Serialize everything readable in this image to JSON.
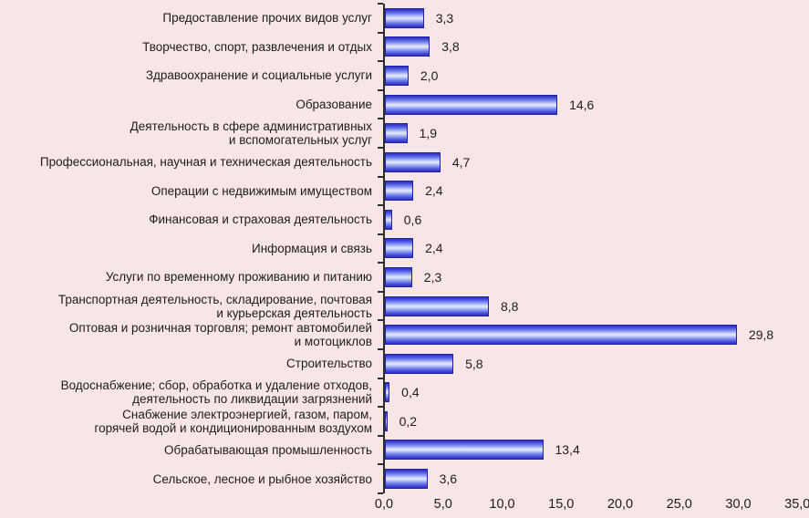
{
  "chart_data": {
    "type": "bar",
    "orientation": "horizontal",
    "title": "",
    "xlabel": "",
    "ylabel": "",
    "xlim": [
      0,
      35
    ],
    "x_tick_step": 5,
    "grid": false,
    "legend": false,
    "x_ticks": [
      "0,0",
      "5,0",
      "10,0",
      "15,0",
      "20,0",
      "25,0",
      "30,0",
      "35,0"
    ],
    "bars": [
      {
        "label_lines": [
          "Предоставление прочих видов услуг"
        ],
        "value": 3.3,
        "value_label": "3,3"
      },
      {
        "label_lines": [
          "Творчество, спорт, развлечения и отдых"
        ],
        "value": 3.8,
        "value_label": "3,8"
      },
      {
        "label_lines": [
          "Здравоохранение и социальные услуги"
        ],
        "value": 2.0,
        "value_label": "2,0"
      },
      {
        "label_lines": [
          "Образование"
        ],
        "value": 14.6,
        "value_label": "14,6"
      },
      {
        "label_lines": [
          "Деятельность в сфере административных",
          "и вспомогательных услуг"
        ],
        "value": 1.9,
        "value_label": "1,9"
      },
      {
        "label_lines": [
          "Профессиональная, научная и техническая деятельность"
        ],
        "value": 4.7,
        "value_label": "4,7"
      },
      {
        "label_lines": [
          "Операции с недвижимым имуществом"
        ],
        "value": 2.4,
        "value_label": "2,4"
      },
      {
        "label_lines": [
          "Финансовая и страховая деятельность"
        ],
        "value": 0.6,
        "value_label": "0,6"
      },
      {
        "label_lines": [
          "Информация и связь"
        ],
        "value": 2.4,
        "value_label": "2,4"
      },
      {
        "label_lines": [
          "Услуги по временному проживанию и питанию"
        ],
        "value": 2.3,
        "value_label": "2,3"
      },
      {
        "label_lines": [
          "Транспортная деятельность, складирование, почтовая",
          "и курьерская деятельность"
        ],
        "value": 8.8,
        "value_label": "8,8"
      },
      {
        "label_lines": [
          "Оптовая и розничная торговля; ремонт автомобилей",
          "и мотоциклов"
        ],
        "value": 29.8,
        "value_label": "29,8"
      },
      {
        "label_lines": [
          "Строительство"
        ],
        "value": 5.8,
        "value_label": "5,8"
      },
      {
        "label_lines": [
          "Водоснабжение; сбор, обработка и удаление отходов,",
          "деятельность по ликвидации загрязнений"
        ],
        "value": 0.4,
        "value_label": "0,4"
      },
      {
        "label_lines": [
          "Снабжение электроэнергией, газом, паром,",
          "горячей водой и кондиционированным воздухом"
        ],
        "value": 0.2,
        "value_label": "0,2"
      },
      {
        "label_lines": [
          "Обрабатывающая промышленность"
        ],
        "value": 13.4,
        "value_label": "13,4"
      },
      {
        "label_lines": [
          "Сельское, лесное и рыбное хозяйство"
        ],
        "value": 3.6,
        "value_label": "3,6"
      }
    ],
    "colors": {
      "background": "#F8E6E7",
      "bar_border": "#2222A8",
      "bar_dark": "#2E2EBE",
      "bar_mid": "#4A55DE",
      "bar_midlight": "#93A0F2",
      "bar_light": "#DCE4FE",
      "axis": "#2E2E2E",
      "text": "#1C1C1C"
    }
  }
}
